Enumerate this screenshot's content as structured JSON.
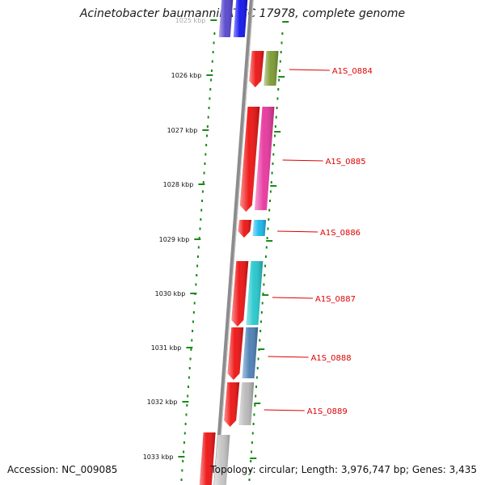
{
  "title": "Acinetobacter baumannii ATCC 17978, complete genome",
  "footer": {
    "accession": "Accession: NC_009085",
    "topology": "Topology: circular; Length: 3,976,747 bp; Genes: 3,435"
  },
  "scale_labels": [
    "1025 kbp",
    "1026 kbp",
    "1027 kbp",
    "1028 kbp",
    "1029 kbp",
    "1030 kbp",
    "1031 kbp",
    "1032 kbp",
    "1033 kbp"
  ],
  "genes": [
    {
      "label": "A1S_0884",
      "color": "#7a9a30"
    },
    {
      "label": "A1S_0885",
      "color": "#e8359e"
    },
    {
      "label": "A1S_0886",
      "color": "#17b7ee"
    },
    {
      "label": "A1S_0887",
      "color": "#22c7cc"
    },
    {
      "label": "A1S_0888",
      "color": "#4a7fb5"
    },
    {
      "label": "A1S_0889",
      "color": "#b8b8b8"
    }
  ],
  "colors": {
    "strand_red": "#ee1111",
    "label_red": "#dd0000",
    "dot_green": "#1a8a1a",
    "top_gene_a": "#5544cc",
    "top_gene_b": "#1111ee",
    "bottom_gene": "#c4c4c4",
    "axis_gray": "#8c8c8c"
  }
}
